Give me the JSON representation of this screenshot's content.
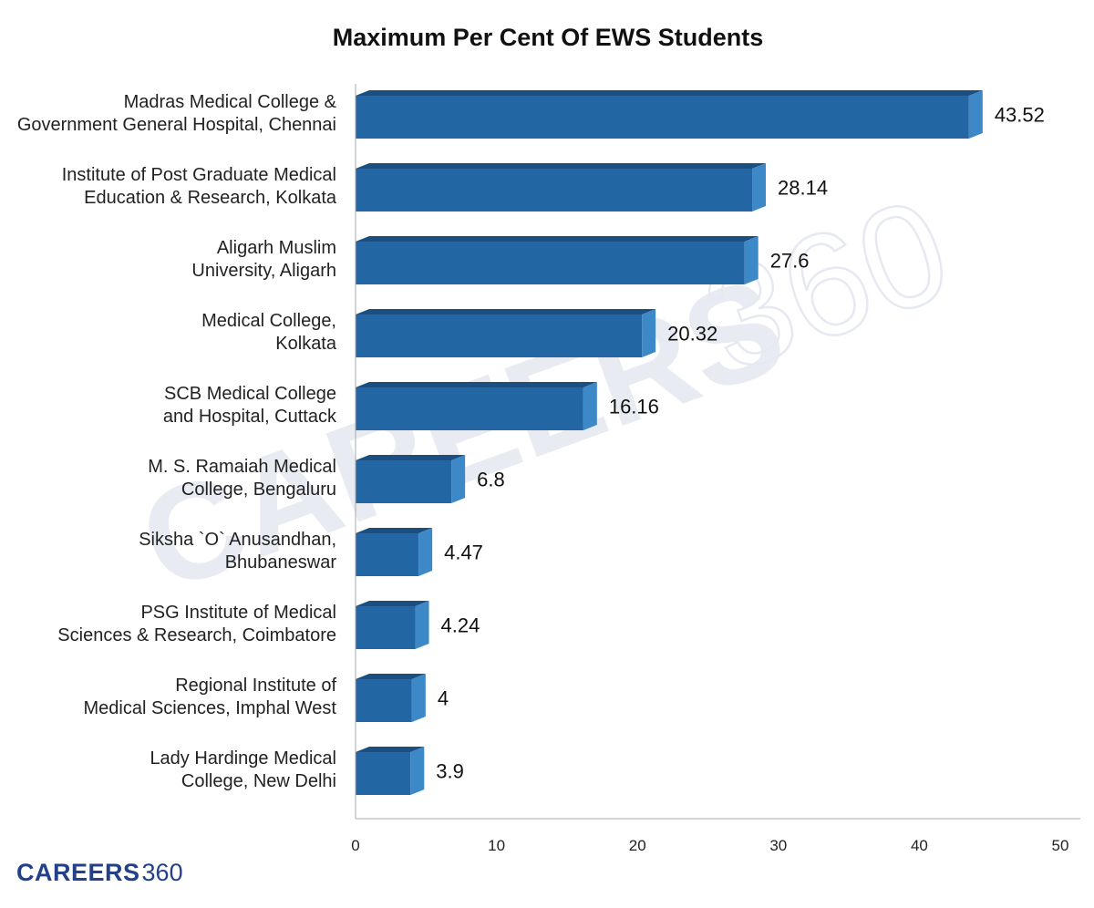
{
  "chart_data": {
    "type": "bar",
    "orientation": "horizontal",
    "title": "Maximum Per Cent Of EWS Students",
    "categories": [
      [
        "Madras Medical College &",
        "Government General Hospital, Chennai"
      ],
      [
        "Institute of Post Graduate Medical",
        "Education & Research, Kolkata"
      ],
      [
        "Aligarh Muslim",
        "University, Aligarh"
      ],
      [
        "Medical College,",
        "Kolkata"
      ],
      [
        "SCB Medical College",
        "and Hospital, Cuttack"
      ],
      [
        "M. S. Ramaiah Medical",
        "College, Bengaluru"
      ],
      [
        "Siksha `O` Anusandhan,",
        "Bhubaneswar"
      ],
      [
        "PSG Institute of Medical",
        "Sciences & Research, Coimbatore"
      ],
      [
        "Regional Institute of",
        "Medical Sciences, Imphal West"
      ],
      [
        "Lady Hardinge Medical",
        "College, New Delhi"
      ]
    ],
    "values": [
      43.52,
      28.14,
      27.6,
      20.32,
      16.16,
      6.8,
      4.47,
      4.24,
      4,
      3.9
    ],
    "value_labels": [
      "43.52",
      "28.14",
      "27.6",
      "20.32",
      "16.16",
      "6.8",
      "4.47",
      "4.24",
      "4",
      "3.9"
    ],
    "xlim": [
      0,
      50
    ],
    "xticks": [
      0,
      10,
      20,
      30,
      40,
      50
    ],
    "xlabel": "",
    "ylabel": "",
    "grid": false,
    "legend": "none",
    "colors": {
      "bar_front": "#2266a3",
      "bar_top": "#1b4f82",
      "bar_side": "#3d88c7",
      "axis": "#aaaaaa"
    }
  },
  "watermark": {
    "brand": "CAREERS",
    "num": "360"
  },
  "logo": {
    "brand": "CAREERS",
    "num": "360"
  }
}
